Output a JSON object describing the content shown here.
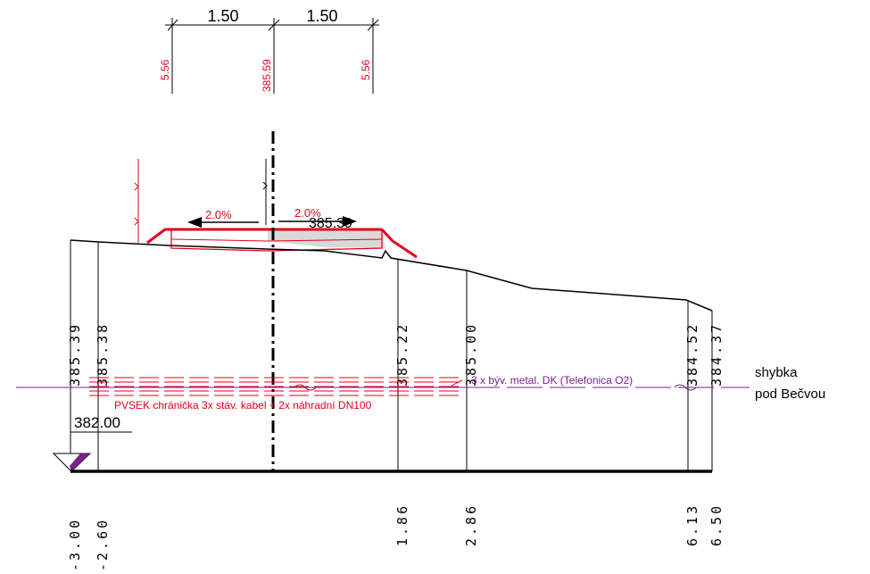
{
  "dimensions": {
    "left_width": "1.50",
    "right_width": "1.50",
    "left_offset": "5.56",
    "center_elevation": "385.59",
    "right_offset": "5.56"
  },
  "road": {
    "left_slope": "2.0%",
    "right_slope": "2.0%",
    "axis_elevation": "385.39"
  },
  "terrain_heights": [
    "385.39",
    "385.38",
    "385.22",
    "385.00",
    "384.52",
    "384.37"
  ],
  "stations": [
    "-3.00",
    "-2.60",
    "1.86",
    "2.86",
    "6.13",
    "6.50"
  ],
  "datum": {
    "elevation": "382.00"
  },
  "utilities": {
    "red_label": "PVSEK chránička 3x stáv. kabel + 2x náhradní DN100",
    "purple_label": "3 x býv. metal. DK (Telefonica O2)",
    "note_line1": "shybka",
    "note_line2": "pod Bečvou"
  },
  "colors": {
    "line": "#000000",
    "red": "#e3001b",
    "purple": "#7a1f8e",
    "fill_gray": "#d9d9d9"
  }
}
